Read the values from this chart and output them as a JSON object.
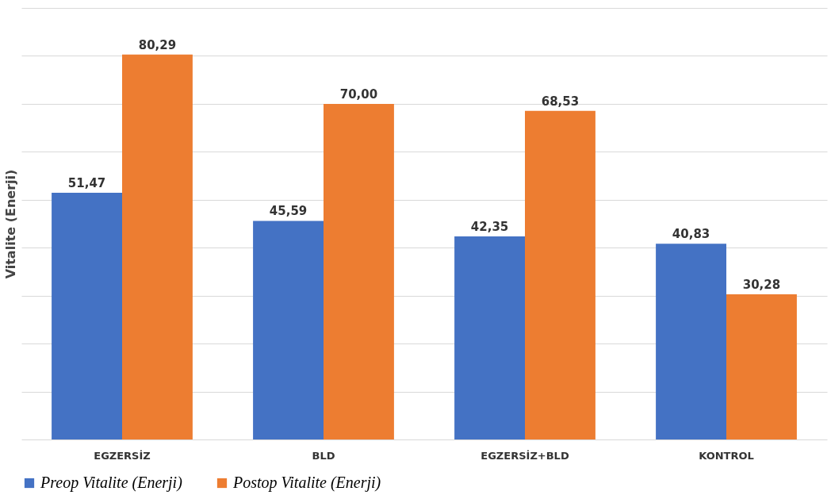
{
  "chart_data": {
    "type": "bar",
    "ylabel": "Vitalite (Enerji)",
    "categories": [
      "EGZERSİZ",
      "BLD",
      "EGZERSİZ+BLD",
      "KONTROL"
    ],
    "series": [
      {
        "name": "Preop Vitalite (Enerji)",
        "color": "#4472c4",
        "values": [
          51.47,
          45.59,
          42.35,
          40.83
        ],
        "value_labels": [
          "51,47",
          "45,59",
          "42,35",
          "40,83"
        ]
      },
      {
        "name": "Postop Vitalite (Enerji)",
        "color": "#ed7d31",
        "values": [
          80.29,
          70.0,
          68.53,
          30.28
        ],
        "value_labels": [
          "80,29",
          "70,00",
          "68,53",
          "30,28"
        ]
      }
    ],
    "ylim": [
      0,
      90
    ],
    "yticks": [
      {
        "value": 0,
        "label": null
      },
      {
        "value": 10,
        "label": null
      },
      {
        "value": 20,
        "label": null
      },
      {
        "value": 30,
        "label": null
      },
      {
        "value": 40,
        "label": null
      },
      {
        "value": 50,
        "label": null
      },
      {
        "value": 60,
        "label": null
      },
      {
        "value": 70,
        "label": null
      },
      {
        "value": 80,
        "label": null
      },
      {
        "value": 90,
        "label": null
      }
    ],
    "grid": "y",
    "legend": "bottom"
  }
}
